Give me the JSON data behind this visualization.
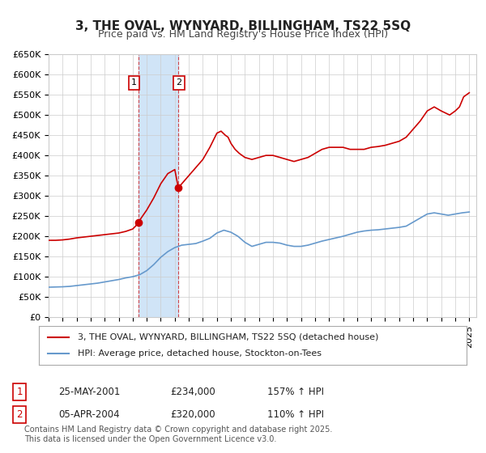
{
  "title": "3, THE OVAL, WYNYARD, BILLINGHAM, TS22 5SQ",
  "subtitle": "Price paid vs. HM Land Registry's House Price Index (HPI)",
  "xlabel": "",
  "ylabel": "",
  "ylim": [
    0,
    650000
  ],
  "yticks": [
    0,
    50000,
    100000,
    150000,
    200000,
    250000,
    300000,
    350000,
    400000,
    450000,
    500000,
    550000,
    600000,
    650000
  ],
  "xlim_start": 1995.0,
  "xlim_end": 2025.5,
  "sale1_date": 2001.39,
  "sale1_price": 234000,
  "sale1_label": "1",
  "sale2_date": 2004.25,
  "sale2_price": 320000,
  "sale2_label": "2",
  "shade_start": 2001.39,
  "shade_end": 2004.25,
  "red_color": "#cc0000",
  "blue_color": "#6699cc",
  "shade_color": "#d0e4f7",
  "grid_color": "#cccccc",
  "bg_color": "#ffffff",
  "legend_label_red": "3, THE OVAL, WYNYARD, BILLINGHAM, TS22 5SQ (detached house)",
  "legend_label_blue": "HPI: Average price, detached house, Stockton-on-Tees",
  "table_row1": [
    "1",
    "25-MAY-2001",
    "£234,000",
    "157% ↑ HPI"
  ],
  "table_row2": [
    "2",
    "05-APR-2004",
    "£320,000",
    "110% ↑ HPI"
  ],
  "footnote": "Contains HM Land Registry data © Crown copyright and database right 2025.\nThis data is licensed under the Open Government Licence v3.0.",
  "title_fontsize": 11,
  "subtitle_fontsize": 9,
  "tick_fontsize": 8,
  "legend_fontsize": 8,
  "table_fontsize": 8.5,
  "footnote_fontsize": 7
}
